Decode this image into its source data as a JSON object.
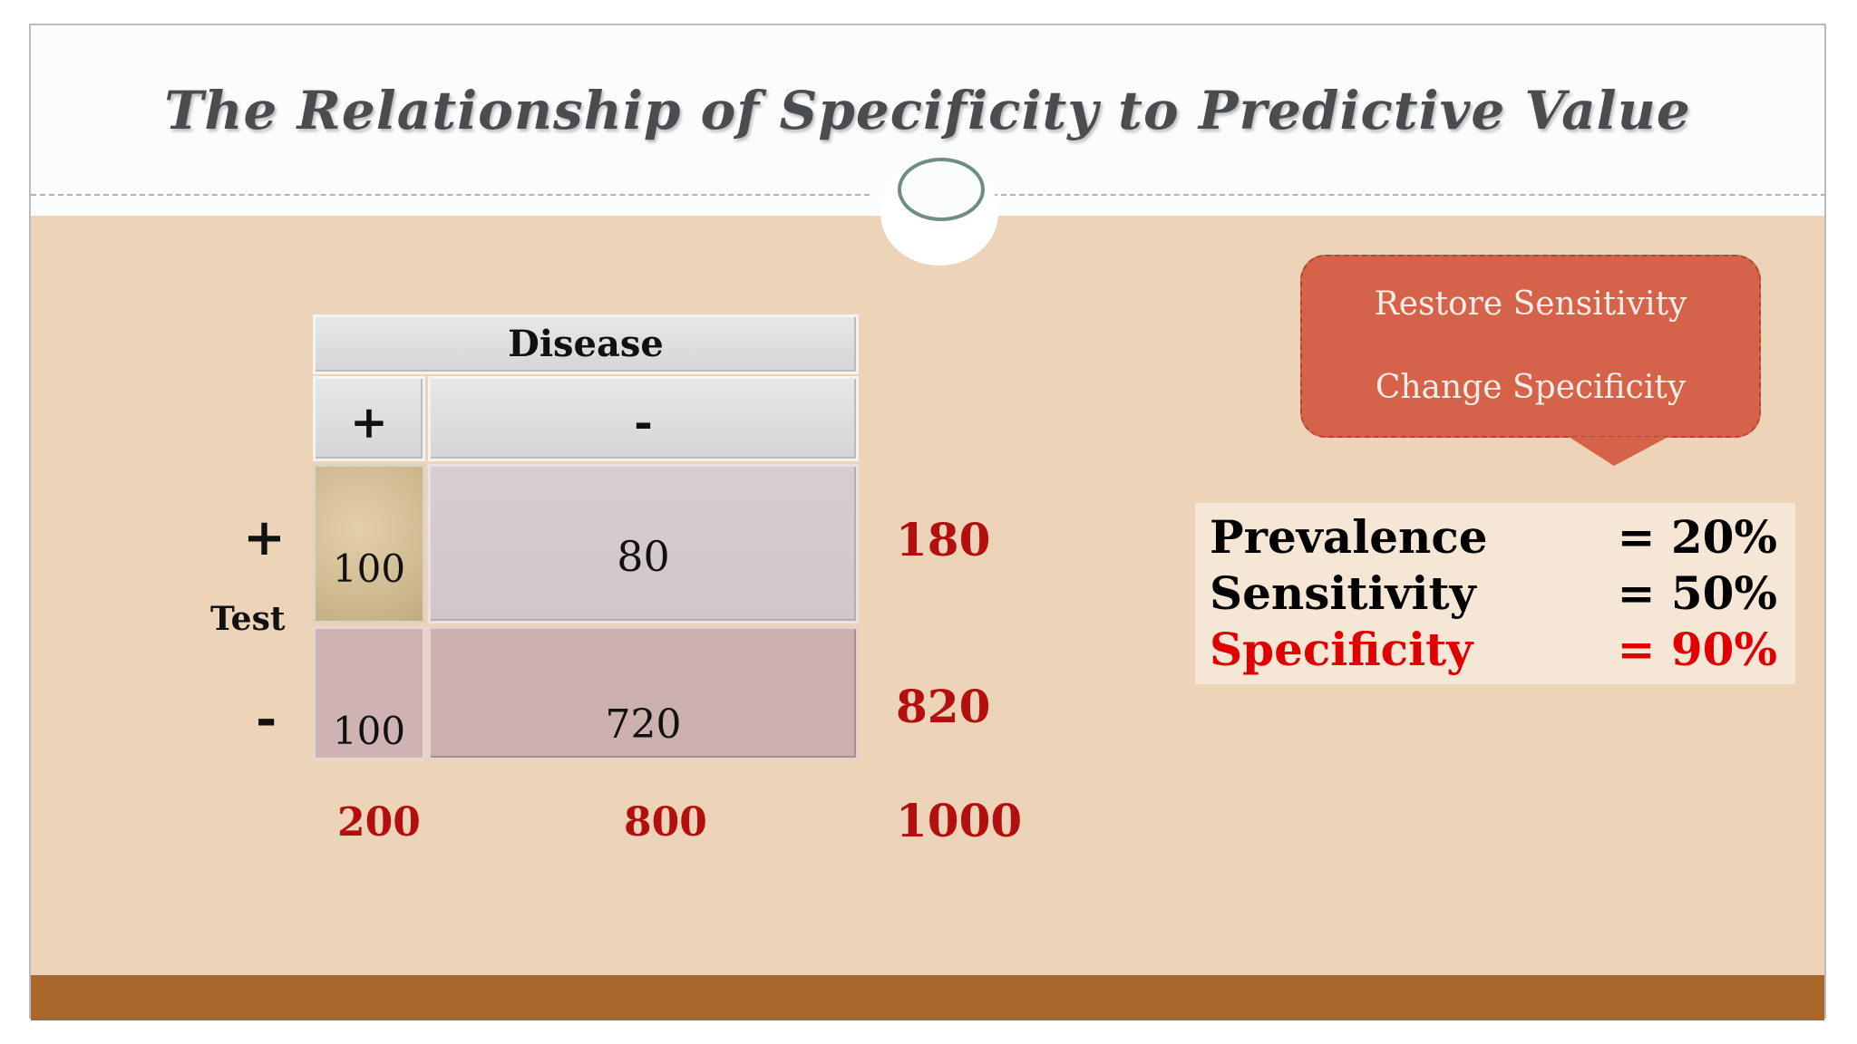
{
  "slide": {
    "title": "The Relationship of Specificity to Predictive Value"
  },
  "table": {
    "header": "Disease",
    "col_plus": "+",
    "col_minus": "-",
    "row_plus": "+",
    "row_minus": "-",
    "row_label": "Test",
    "cells": {
      "a": "100",
      "b": "80",
      "c": "100",
      "d": "720"
    },
    "row_totals": [
      "180",
      "820"
    ],
    "col_totals": [
      "200",
      "800"
    ],
    "grand_total": "1000"
  },
  "callout": {
    "line1": "Restore Sensitivity",
    "line2": "Change Specificity"
  },
  "stats": [
    {
      "label": "Prevalence",
      "value": "= 20%",
      "color": "#000000"
    },
    {
      "label": "Sensitivity",
      "value": "= 50%",
      "color": "#000000"
    },
    {
      "label": "Specificity",
      "value": "= 90%",
      "color": "#e00000"
    }
  ],
  "colors": {
    "background": "#edd3b7",
    "footer": "#a8682b",
    "totals": "#b30f0f",
    "callout": "#d4634a"
  }
}
